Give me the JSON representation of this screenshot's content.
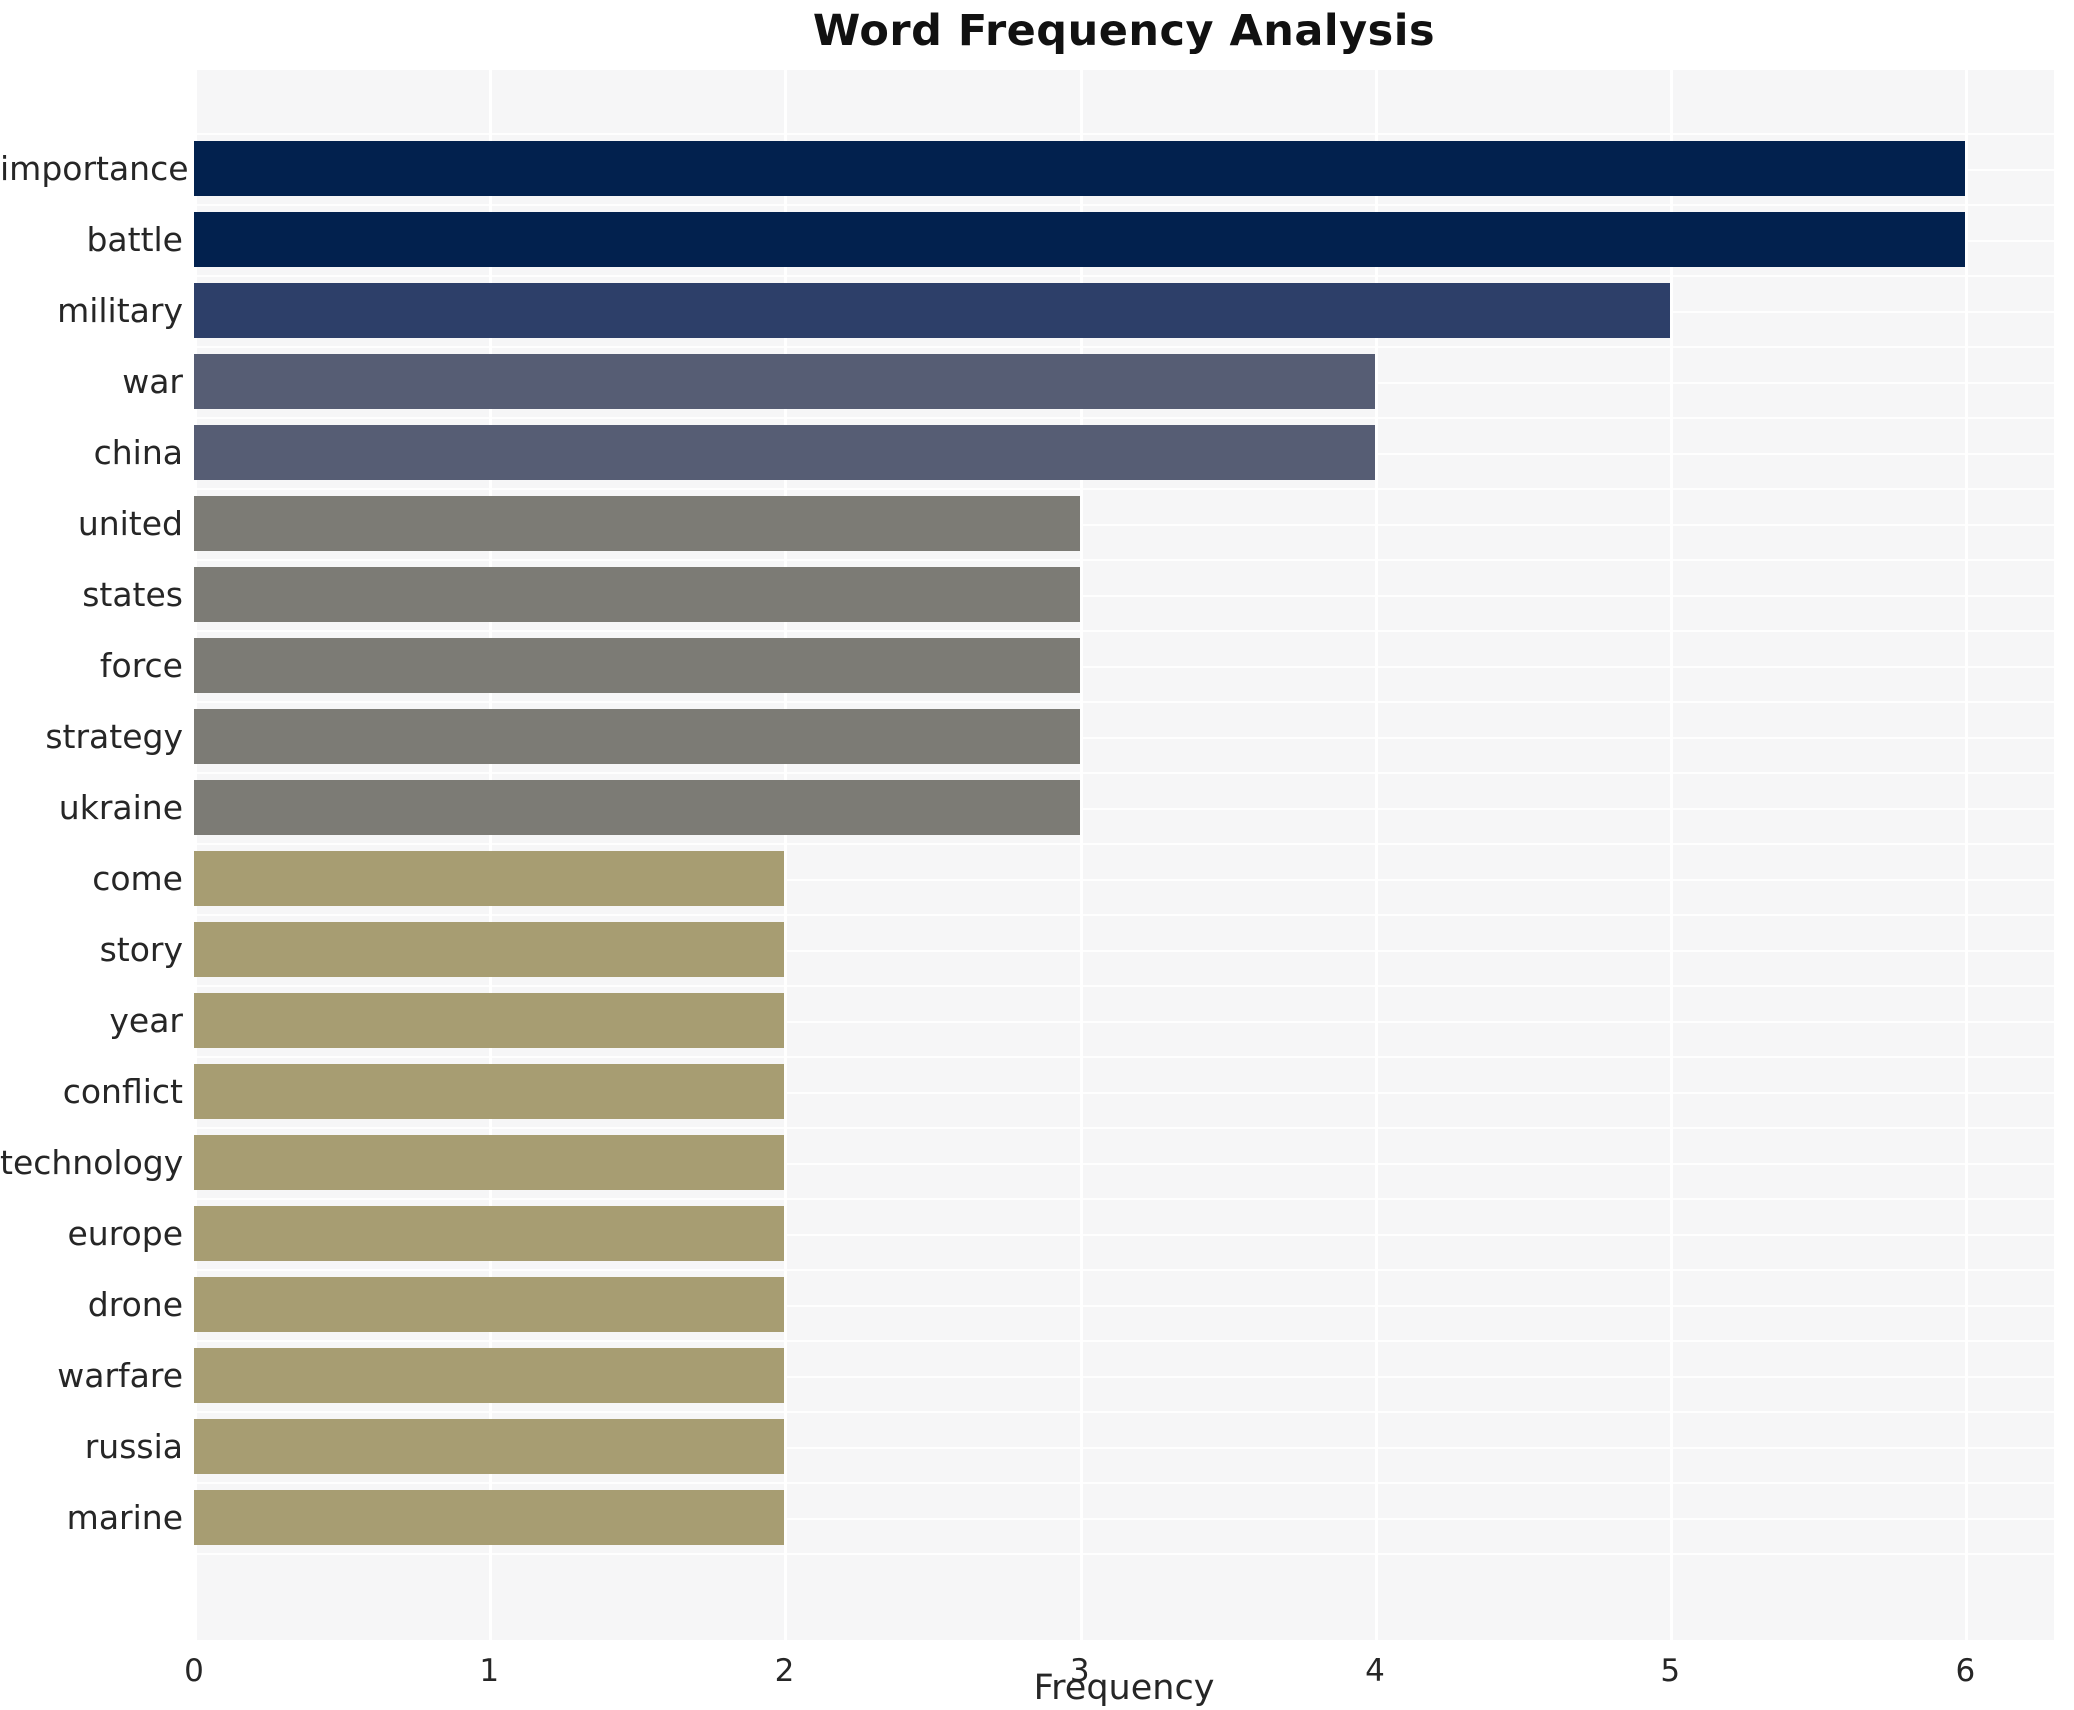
{
  "chart_data": {
    "type": "bar",
    "orientation": "horizontal",
    "title": "Word Frequency Analysis",
    "xlabel": "Frequency",
    "ylabel": "",
    "categories": [
      "importance",
      "battle",
      "military",
      "war",
      "china",
      "united",
      "states",
      "force",
      "strategy",
      "ukraine",
      "come",
      "story",
      "year",
      "conflict",
      "technology",
      "europe",
      "drone",
      "warfare",
      "russia",
      "marine"
    ],
    "values": [
      6,
      6,
      5,
      4,
      4,
      3,
      3,
      3,
      3,
      3,
      2,
      2,
      2,
      2,
      2,
      2,
      2,
      2,
      2,
      2
    ],
    "xlim": [
      0,
      6.3
    ],
    "xticks": [
      0,
      1,
      2,
      3,
      4,
      5,
      6
    ],
    "grid": true,
    "legend_position": "none",
    "colors": {
      "value_6": "#02214e",
      "value_5": "#2d3f69",
      "value_4": "#565d74",
      "value_3": "#7c7b75",
      "value_2": "#a79d72",
      "plot_background": "#f6f6f7",
      "gridline": "#ffffff",
      "text": "#262626",
      "title_text": "#111111"
    }
  }
}
